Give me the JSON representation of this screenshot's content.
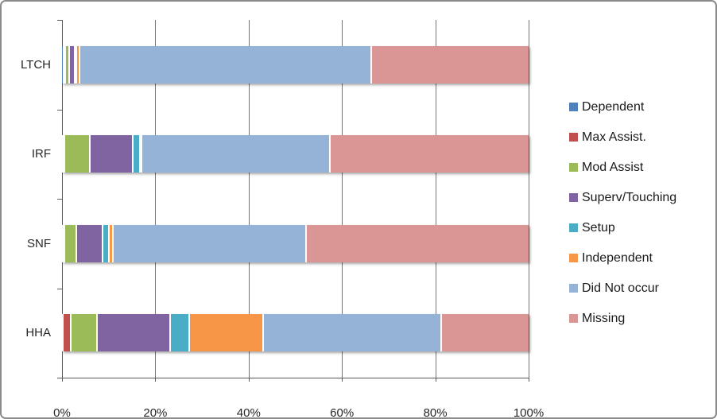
{
  "chart_data": {
    "type": "bar",
    "orientation": "horizontal",
    "stacked": true,
    "title": "",
    "xlabel": "",
    "ylabel": "",
    "xlim": [
      0,
      100
    ],
    "grid": "vertical",
    "legend_position": "right",
    "categories": [
      "LTCH",
      "IRF",
      "SNF",
      "HHA"
    ],
    "x_tick_labels": [
      "0%",
      "20%",
      "40%",
      "60%",
      "80%",
      "100%"
    ],
    "series": [
      {
        "name": "Dependent",
        "color": "#4F81BD",
        "values": [
          0.5,
          0.4,
          0.4,
          0.4
        ]
      },
      {
        "name": "Max Assist.",
        "color": "#C0504D",
        "values": [
          0.3,
          0.3,
          0.3,
          1.6
        ]
      },
      {
        "name": "Mod Assist",
        "color": "#9BBB59",
        "values": [
          0.9,
          5.4,
          2.6,
          5.6
        ]
      },
      {
        "name": "Superv/Touching",
        "color": "#8064A2",
        "values": [
          1.2,
          9.3,
          5.6,
          15.8
        ]
      },
      {
        "name": "Setup",
        "color": "#4BACC6",
        "values": [
          0.3,
          1.5,
          1.3,
          4.1
        ]
      },
      {
        "name": "Independent",
        "color": "#F79646",
        "values": [
          0.7,
          0.3,
          0.9,
          15.8
        ]
      },
      {
        "name": "Did Not occur",
        "color": "#95B3D7",
        "values": [
          62.6,
          40.3,
          41.3,
          38.2
        ]
      },
      {
        "name": "Missing",
        "color": "#D99694",
        "values": [
          33.5,
          42.5,
          47.6,
          18.5
        ]
      }
    ]
  }
}
